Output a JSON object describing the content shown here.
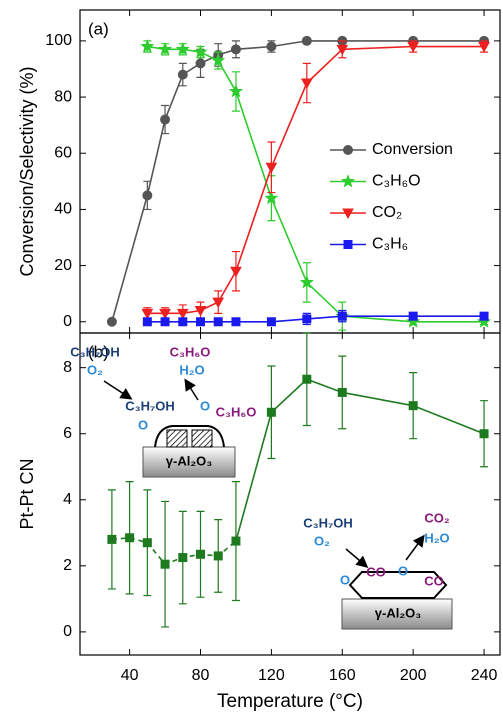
{
  "chart_data": [
    {
      "type": "line",
      "panel_label": "(a)",
      "y_label": "Conversion/Selectivity (%)",
      "xlim": [
        12,
        249
      ],
      "xticks": [
        40,
        80,
        120,
        160,
        200,
        240
      ],
      "ylim": [
        -4,
        111
      ],
      "yticks": [
        0,
        20,
        40,
        60,
        80,
        100
      ],
      "legend": "right",
      "series": [
        {
          "name": "Conversion",
          "color": "#555555",
          "marker": "circle",
          "x": [
            30,
            50,
            60,
            70,
            80,
            90,
            100,
            120,
            140,
            160,
            200,
            240
          ],
          "values": [
            0,
            45,
            72,
            88,
            92,
            95,
            97,
            98,
            100,
            100,
            100,
            100
          ],
          "errors": [
            0,
            5,
            5,
            4,
            5,
            4,
            3,
            2,
            1,
            1,
            1,
            1
          ]
        },
        {
          "name": "C₃H₆O",
          "color": "#2ecc2e",
          "marker": "star",
          "x": [
            50,
            60,
            70,
            80,
            90,
            100,
            120,
            140,
            160,
            200,
            240
          ],
          "values": [
            98,
            97,
            97,
            96,
            93,
            82,
            44,
            14,
            2,
            0,
            0
          ],
          "errors": [
            2,
            2,
            2,
            2,
            3,
            7,
            8,
            7,
            5,
            1,
            1
          ]
        },
        {
          "name": "CO₂",
          "color": "#ee2020",
          "marker": "triangle-down",
          "x": [
            50,
            60,
            70,
            80,
            90,
            100,
            120,
            140,
            160,
            200,
            240
          ],
          "values": [
            3,
            3,
            3,
            4,
            7,
            18,
            55,
            85,
            97,
            98,
            98
          ],
          "errors": [
            2,
            2,
            3,
            3,
            4,
            7,
            9,
            7,
            3,
            2,
            2
          ]
        },
        {
          "name": "C₃H₆",
          "color": "#1a1aee",
          "marker": "square",
          "x": [
            50,
            60,
            70,
            80,
            90,
            100,
            120,
            140,
            160,
            200,
            240
          ],
          "values": [
            0,
            0,
            0,
            0,
            0,
            0,
            0,
            1,
            2,
            2,
            2
          ],
          "errors": [
            1,
            1,
            1,
            1,
            1,
            1,
            1,
            2,
            2,
            1,
            1
          ]
        }
      ]
    },
    {
      "type": "line",
      "panel_label": "(b)",
      "x_label": "Temperature (°C)",
      "y_label": "Pt-Pt CN",
      "xlim": [
        12,
        249
      ],
      "xticks": [
        40,
        80,
        120,
        160,
        200,
        240
      ],
      "ylim": [
        -0.7,
        9.05
      ],
      "yticks": [
        0,
        2,
        4,
        6,
        8
      ],
      "series": [
        {
          "color": "#1e7a1e",
          "marker": "square",
          "dashed_x_max": 100,
          "x": [
            30,
            40,
            50,
            60,
            70,
            80,
            90,
            100,
            120,
            140,
            160,
            200,
            240
          ],
          "values": [
            2.8,
            2.85,
            2.7,
            2.05,
            2.25,
            2.35,
            2.3,
            2.75,
            6.65,
            7.65,
            7.25,
            6.85,
            6.0
          ],
          "errors": [
            1.5,
            1.7,
            1.6,
            1.9,
            1.4,
            1.3,
            1.1,
            1.8,
            1.4,
            1.4,
            1.1,
            1.0,
            1.0
          ]
        }
      ],
      "annotations": [
        {
          "text": "C₃H₇OH",
          "color": "#1c3f7a"
        },
        {
          "text": "O₂",
          "color": "#2a8ad8"
        },
        {
          "text": "C₃H₆O",
          "color": "#8a1a7a"
        },
        {
          "text": "H₂O",
          "color": "#2a8ad8"
        },
        {
          "text": "C₃H₇OH",
          "color": "#1c3f7a"
        },
        {
          "text": "O",
          "color": "#2a8ad8"
        },
        {
          "text": "C₃H₆O",
          "color": "#8a1a7a"
        },
        {
          "text": "O",
          "color": "#2a8ad8"
        },
        {
          "text": "γ-Al₂O₃",
          "color": "#000000"
        },
        {
          "text": "C₃H₇OH",
          "color": "#1c3f7a"
        },
        {
          "text": "O₂",
          "color": "#2a8ad8"
        },
        {
          "text": "CO₂",
          "color": "#8a1a7a"
        },
        {
          "text": "H₂O",
          "color": "#2a8ad8"
        },
        {
          "text": "O",
          "color": "#2a8ad8"
        },
        {
          "text": "CO",
          "color": "#8a1a7a"
        },
        {
          "text": "O",
          "color": "#2a8ad8"
        },
        {
          "text": "CO",
          "color": "#8a1a7a"
        },
        {
          "text": "γ-Al₂O₃",
          "color": "#000000"
        }
      ]
    }
  ]
}
